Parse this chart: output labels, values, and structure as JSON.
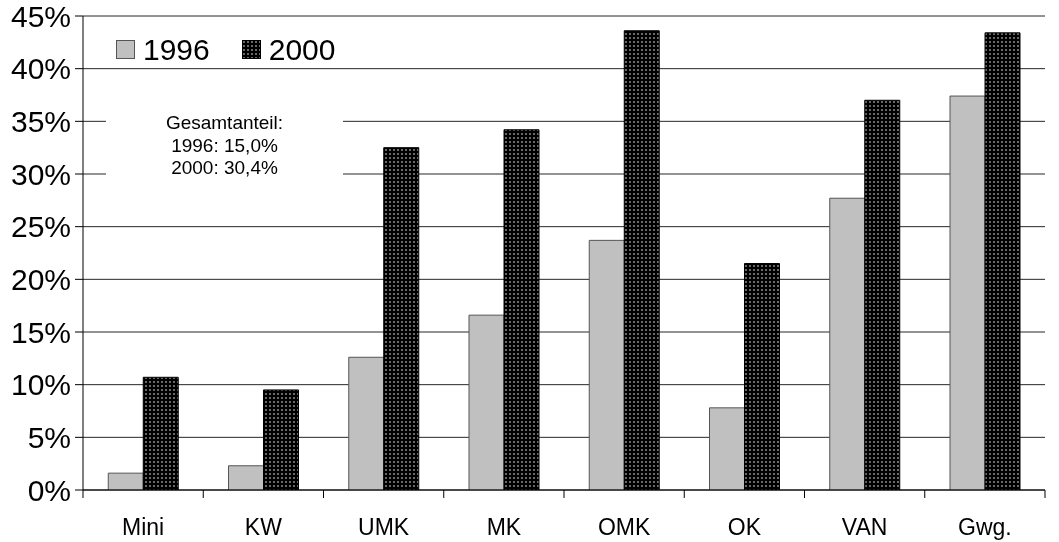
{
  "chart_data": {
    "type": "bar",
    "categories": [
      "Mini",
      "KW",
      "UMK",
      "MK",
      "OMK",
      "OK",
      "VAN",
      "Gwg."
    ],
    "series": [
      {
        "name": "1996",
        "color": "#c0c0c0",
        "values": [
          1.6,
          2.3,
          12.6,
          16.6,
          23.7,
          7.8,
          27.7,
          37.4
        ]
      },
      {
        "name": "2000",
        "color": "#000000",
        "values": [
          10.7,
          9.5,
          32.5,
          34.2,
          43.6,
          21.5,
          37.0,
          43.4
        ]
      }
    ],
    "ylim": [
      0,
      45
    ],
    "yticks": [
      {
        "value": 0,
        "label": "0%"
      },
      {
        "value": 5,
        "label": "5%"
      },
      {
        "value": 10,
        "label": "10%"
      },
      {
        "value": 15,
        "label": "15%"
      },
      {
        "value": 20,
        "label": "20%"
      },
      {
        "value": 25,
        "label": "25%"
      },
      {
        "value": 30,
        "label": "30%"
      },
      {
        "value": 35,
        "label": "35%"
      },
      {
        "value": 40,
        "label": "40%"
      },
      {
        "value": 45,
        "label": "45%"
      }
    ],
    "grid": "y",
    "legend": "top left",
    "annotations": [
      "Gesamtanteil:\n1996: 15,0%\n2000: 30,4%"
    ]
  }
}
